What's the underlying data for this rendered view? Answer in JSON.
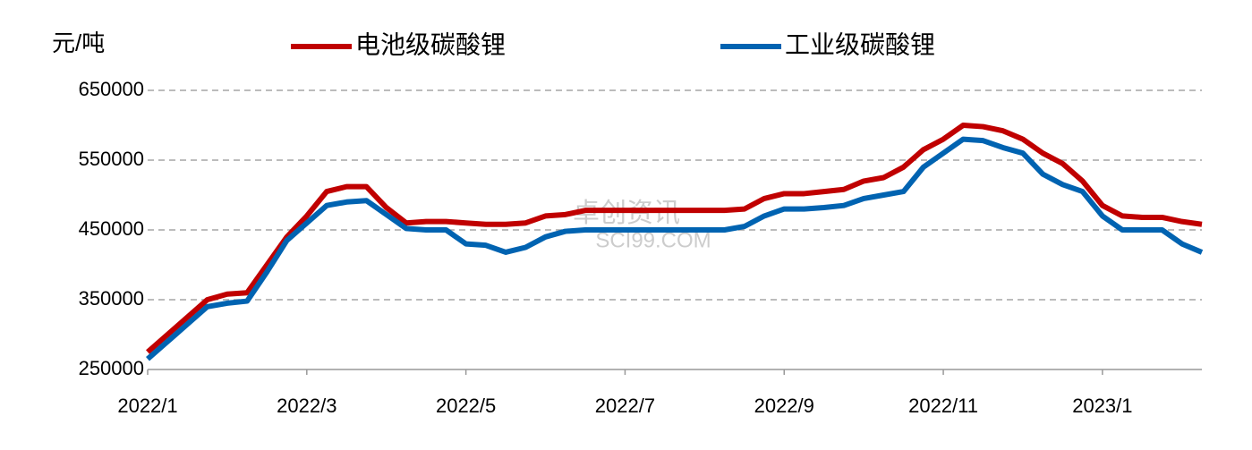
{
  "chart_data": {
    "type": "line",
    "y_label": "元/吨",
    "watermark": [
      "卓创资讯",
      "SCI99.COM"
    ],
    "categories": [
      "2022/1",
      null,
      null,
      null,
      null,
      null,
      null,
      null,
      "2022/3",
      null,
      null,
      null,
      null,
      null,
      null,
      null,
      "2022/5",
      null,
      null,
      null,
      null,
      null,
      null,
      null,
      "2022/7",
      null,
      null,
      null,
      null,
      null,
      null,
      null,
      "2022/9",
      null,
      null,
      null,
      null,
      null,
      null,
      null,
      "2022/11",
      null,
      null,
      null,
      null,
      null,
      null,
      null,
      "2023/1",
      null,
      null,
      null,
      null,
      null
    ],
    "series": [
      {
        "name": "电池级碳酸锂",
        "color": "#c00000",
        "values": [
          275000,
          300000,
          325000,
          350000,
          358000,
          360000,
          400000,
          440000,
          470000,
          505000,
          512000,
          512000,
          482000,
          460000,
          462000,
          462000,
          460000,
          458000,
          458000,
          460000,
          470000,
          472000,
          478000,
          478000,
          478000,
          478000,
          478000,
          478000,
          478000,
          478000,
          480000,
          495000,
          502000,
          502000,
          505000,
          508000,
          520000,
          525000,
          540000,
          565000,
          580000,
          600000,
          598000,
          592000,
          580000,
          560000,
          545000,
          520000,
          485000,
          470000,
          468000,
          468000,
          462000,
          458000
        ]
      },
      {
        "name": "工业级碳酸锂",
        "color": "#0063b1",
        "values": [
          265000,
          290000,
          315000,
          340000,
          345000,
          348000,
          390000,
          435000,
          460000,
          485000,
          490000,
          492000,
          472000,
          452000,
          450000,
          450000,
          430000,
          428000,
          418000,
          425000,
          440000,
          448000,
          450000,
          450000,
          450000,
          450000,
          450000,
          450000,
          450000,
          450000,
          455000,
          470000,
          480000,
          480000,
          482000,
          485000,
          495000,
          500000,
          505000,
          540000,
          560000,
          580000,
          578000,
          568000,
          560000,
          530000,
          515000,
          505000,
          470000,
          450000,
          450000,
          450000,
          430000,
          418000
        ]
      }
    ],
    "ylim": [
      250000,
      650000
    ],
    "yticks": [
      250000,
      350000,
      450000,
      550000,
      650000
    ],
    "grid": true,
    "legend": "top"
  }
}
